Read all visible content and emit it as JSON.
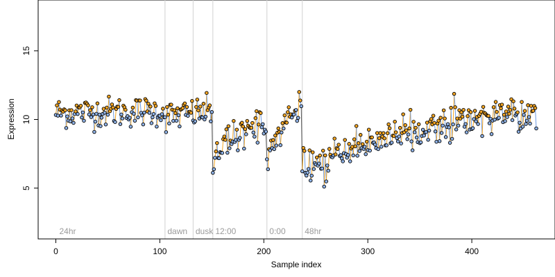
{
  "chart_data": {
    "type": "scatter",
    "title": "",
    "xlabel": "Sample index",
    "ylabel": "Expression",
    "xlim": [
      -17,
      480
    ],
    "ylim": [
      1.3,
      18.7
    ],
    "x_ticks": [
      0,
      100,
      200,
      300,
      400
    ],
    "y_ticks": [
      5,
      10,
      15
    ],
    "x_tick_labels": [
      "0",
      "100",
      "200",
      "300",
      "400"
    ],
    "y_tick_labels": [
      "5",
      "10",
      "15"
    ],
    "grid": false,
    "legend": "none",
    "colors": {
      "points_stroke": "#000000",
      "points_fill_high": "#f5a623",
      "points_fill_low": "#8fb2e6",
      "segment_up": "#f5a623",
      "segment_down": "#6f9be0",
      "vline": "#d0d0d0",
      "annotation": "#9a9a9a"
    },
    "annotations": [
      {
        "x": 2,
        "label": "24hr"
      },
      {
        "x": 106,
        "label": "dawn"
      },
      {
        "x": 133,
        "label": "dusk"
      },
      {
        "x": 152,
        "label": "12:00"
      },
      {
        "x": 204,
        "label": "0:00"
      },
      {
        "x": 238,
        "label": "48hr"
      }
    ],
    "vertical_lines": [
      105,
      132,
      151,
      203,
      237
    ],
    "segments": [
      {
        "x_start": 0,
        "x_end": 104,
        "start": 10.5,
        "end": 10.6
      },
      {
        "x_start": 105,
        "x_end": 150,
        "start": 10.2,
        "end": 10.6
      },
      {
        "x_start": 151,
        "x_end": 202,
        "start": 6.8,
        "end": 9.8
      },
      {
        "x_start": 203,
        "x_end": 236,
        "start": 7.6,
        "end": 11.3
      },
      {
        "x_start": 237,
        "x_end": 462,
        "start": 6.6,
        "end": 10.5
      }
    ],
    "n_points": 463
  }
}
